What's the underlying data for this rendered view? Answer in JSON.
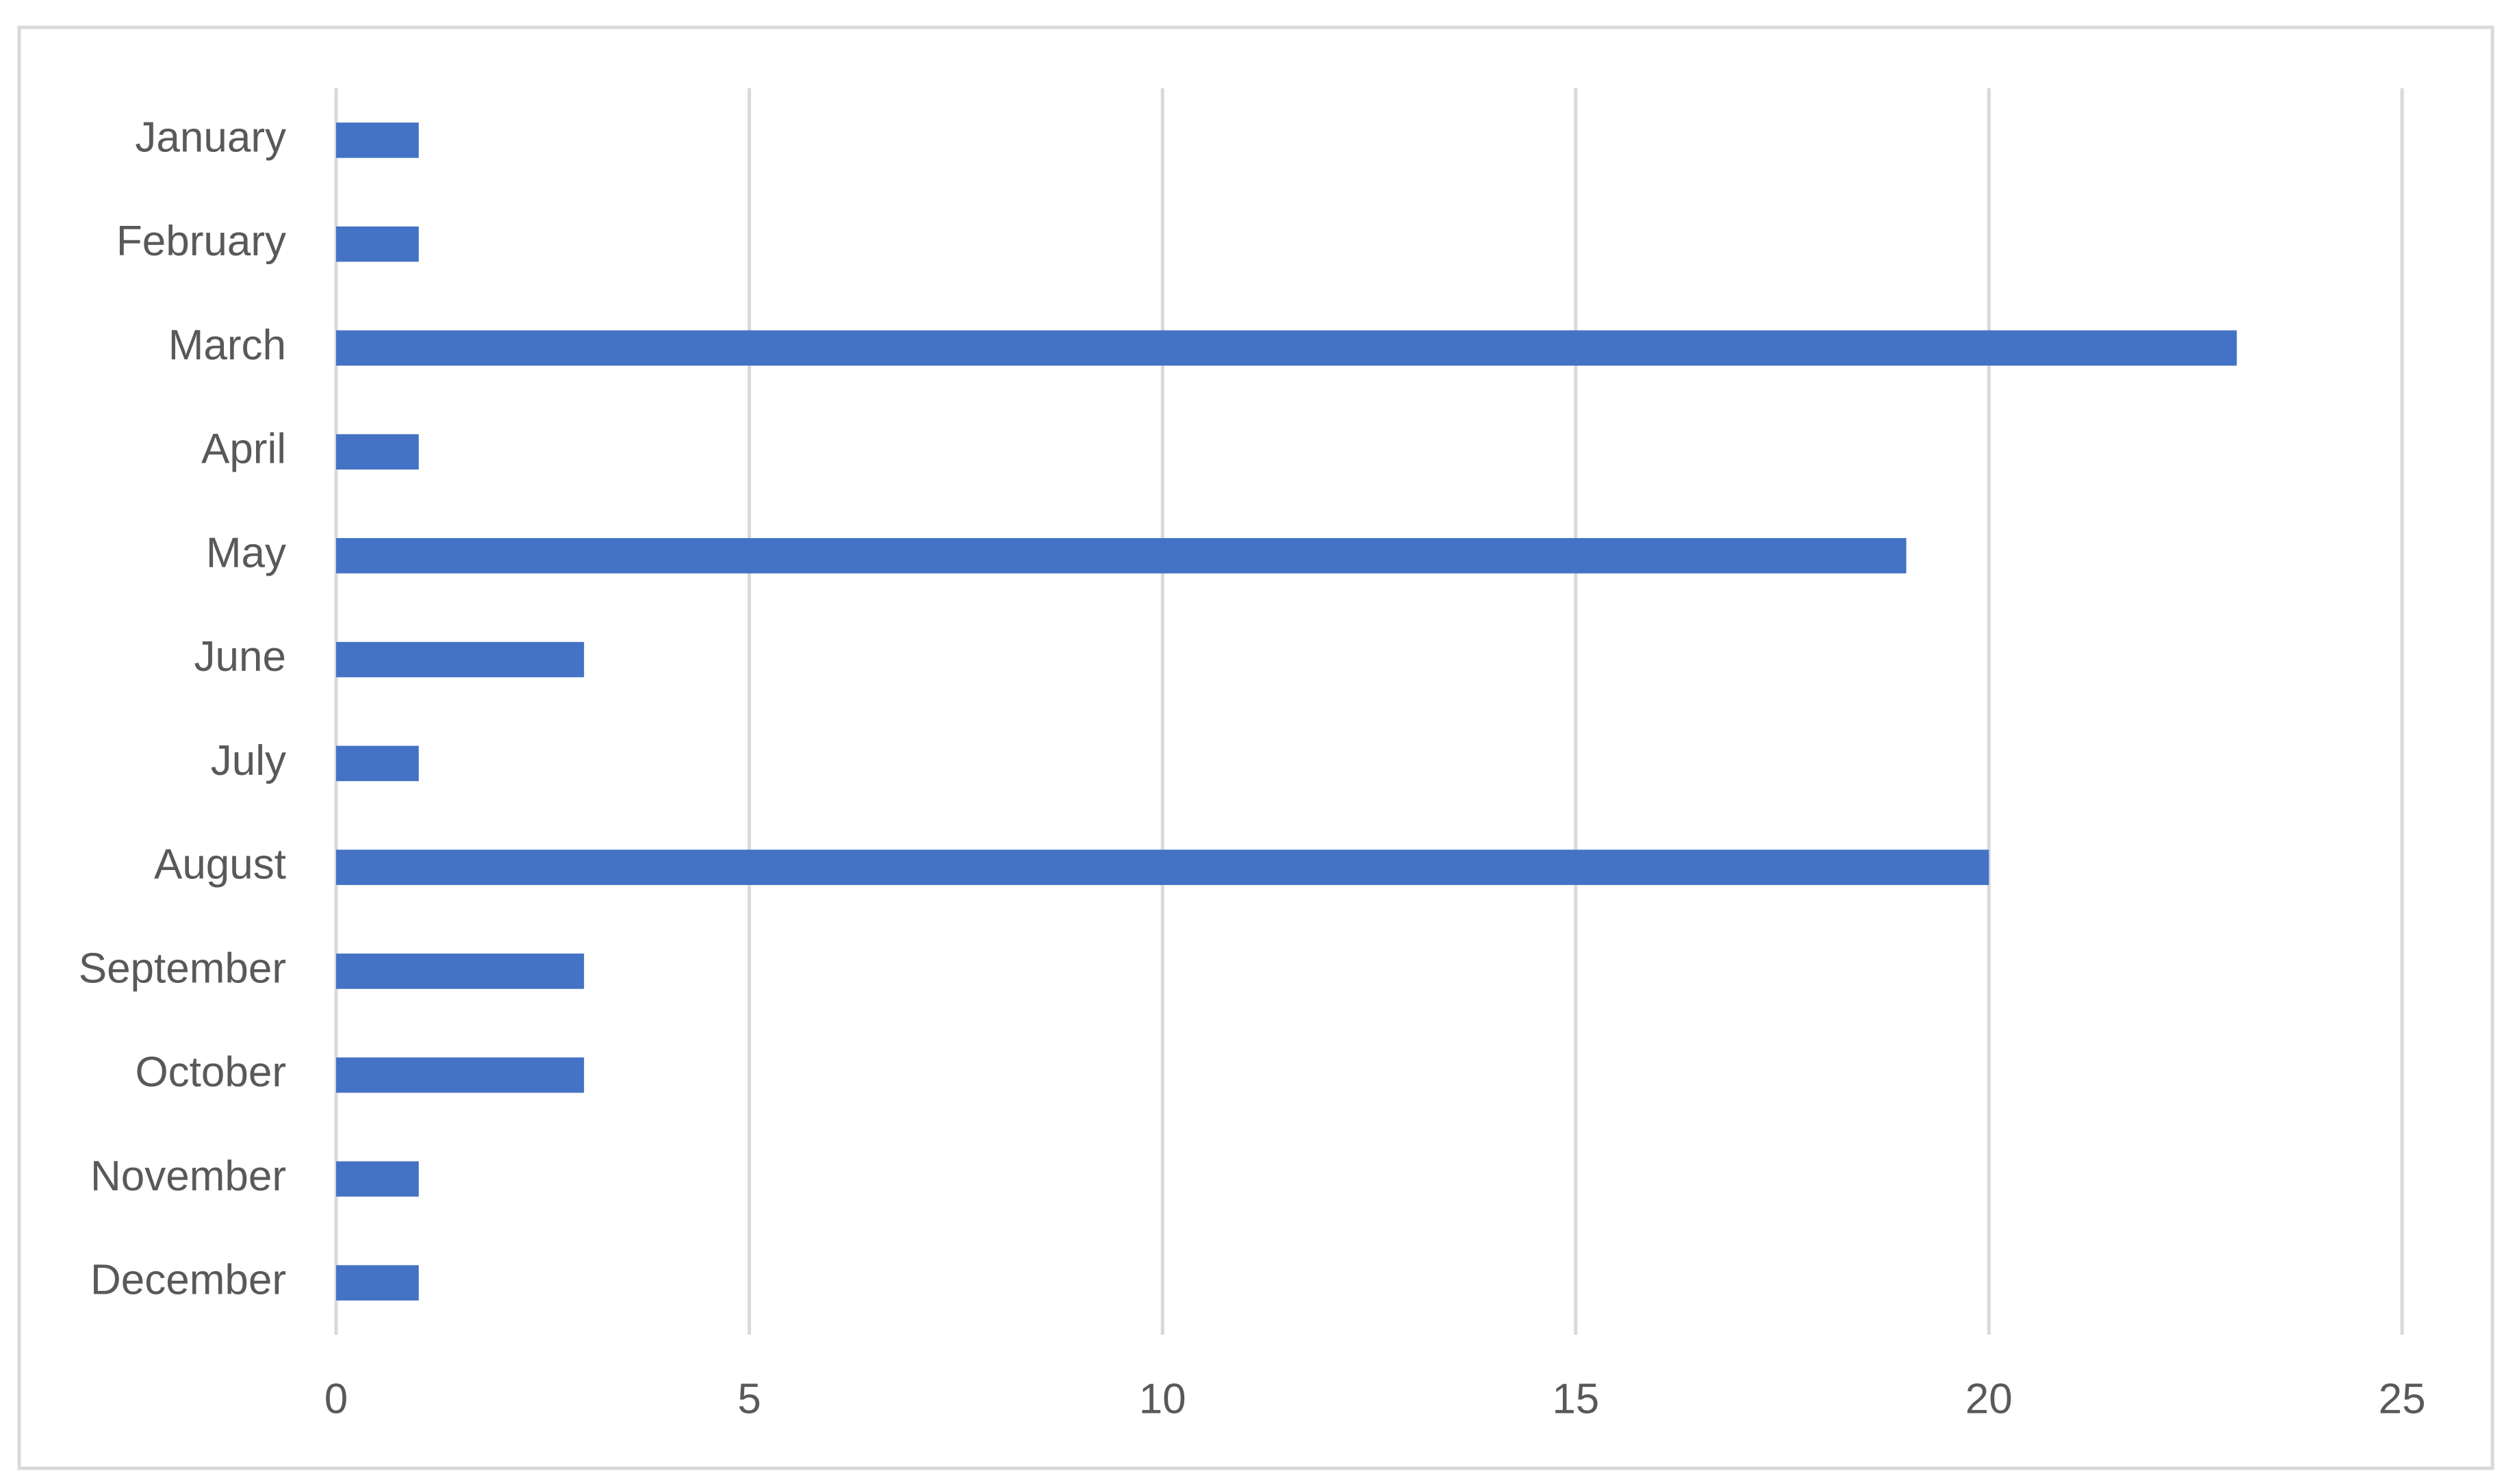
{
  "chart_data": {
    "type": "bar",
    "categories": [
      "January",
      "February",
      "March",
      "April",
      "May",
      "June",
      "July",
      "August",
      "September",
      "October",
      "November",
      "December"
    ],
    "values": [
      1,
      1,
      23,
      1,
      19,
      3,
      1,
      20,
      3,
      3,
      1,
      1
    ],
    "color": "#4472c4",
    "xlim": [
      0,
      25
    ],
    "xticks": [
      0,
      5,
      10,
      15,
      20,
      25
    ],
    "grid": true
  }
}
